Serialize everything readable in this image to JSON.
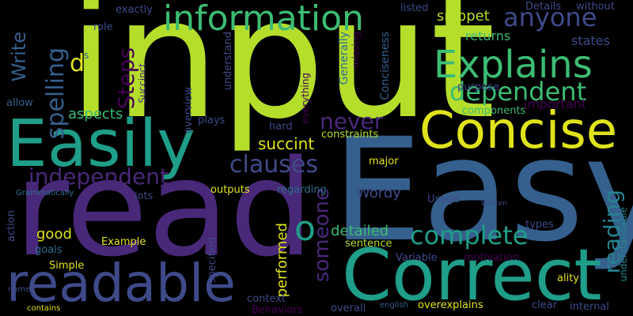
{
  "palette": {
    "lime": "#b5de2b",
    "yellow": "#e0e31a",
    "green": "#3cbc74",
    "teal": "#1f9e89",
    "blue": "#2e6f8e",
    "indigo": "#3f4a8a",
    "purple": "#482878",
    "violet": "#440154",
    "slate": "#35608d",
    "sea": "#26828e"
  },
  "words": [
    {
      "text": "input",
      "color": "lime",
      "weight": 10
    },
    {
      "text": "Easy",
      "color": "slate",
      "weight": 9
    },
    {
      "text": "read",
      "color": "purple",
      "weight": 9
    },
    {
      "text": "Correct",
      "color": "teal",
      "weight": 7
    },
    {
      "text": "Easily",
      "color": "teal",
      "weight": 7
    },
    {
      "text": "readable",
      "color": "indigo",
      "weight": 6
    },
    {
      "text": "Concise",
      "color": "yellow",
      "weight": 6
    },
    {
      "text": "information",
      "color": "green",
      "weight": 5
    },
    {
      "text": "Explains",
      "color": "green",
      "weight": 5
    },
    {
      "text": "dependent",
      "color": "green",
      "weight": 4
    },
    {
      "text": "complete",
      "color": "teal",
      "weight": 4
    },
    {
      "text": "independent",
      "color": "purple",
      "weight": 4
    },
    {
      "text": "clauses",
      "color": "indigo",
      "weight": 4
    },
    {
      "text": "anyone",
      "color": "indigo",
      "weight": 4
    },
    {
      "text": "Steps",
      "color": "violet",
      "weight": 4
    },
    {
      "text": "spelling",
      "color": "slate",
      "weight": 4
    },
    {
      "text": "Write",
      "color": "slate",
      "weight": 3
    },
    {
      "text": "never",
      "color": "purple",
      "weight": 3
    },
    {
      "text": "someone",
      "color": "purple",
      "weight": 3
    },
    {
      "text": "reading",
      "color": "sea",
      "weight": 3
    },
    {
      "text": "o",
      "color": "teal",
      "weight": 4
    },
    {
      "text": "d",
      "color": "yellow",
      "weight": 3
    },
    {
      "text": "succint",
      "color": "yellow",
      "weight": 2
    },
    {
      "text": "detailed",
      "color": "green",
      "weight": 2
    },
    {
      "text": "snippet",
      "color": "lime",
      "weight": 2
    },
    {
      "text": "returns",
      "color": "green",
      "weight": 2
    },
    {
      "text": "aspects",
      "color": "green",
      "weight": 2
    },
    {
      "text": "Wordy",
      "color": "indigo",
      "weight": 2
    },
    {
      "text": "good",
      "color": "yellow",
      "weight": 2
    },
    {
      "text": "performed",
      "color": "yellow",
      "weight": 2
    },
    {
      "text": "important",
      "color": "violet",
      "weight": 2
    },
    {
      "text": "states",
      "color": "indigo",
      "weight": 2
    },
    {
      "text": "exactly",
      "color": "indigo",
      "weight": 1
    },
    {
      "text": "role",
      "color": "indigo",
      "weight": 1
    },
    {
      "text": "s",
      "color": "slate",
      "weight": 1
    },
    {
      "text": "understand",
      "color": "indigo",
      "weight": 1
    },
    {
      "text": "Generally",
      "color": "blue",
      "weight": 1
    },
    {
      "text": "missing",
      "color": "violet",
      "weight": 1
    },
    {
      "text": "Conciseness",
      "color": "slate",
      "weight": 1
    },
    {
      "text": "listed",
      "color": "indigo",
      "weight": 1
    },
    {
      "text": "Details",
      "color": "indigo",
      "weight": 1
    },
    {
      "text": "without",
      "color": "indigo",
      "weight": 1
    },
    {
      "text": "Succinct",
      "color": "purple",
      "weight": 1
    },
    {
      "text": "purpose",
      "color": "indigo",
      "weight": 1
    },
    {
      "text": "everything",
      "color": "violet",
      "weight": 1
    },
    {
      "text": "overview",
      "color": "indigo",
      "weight": 1
    },
    {
      "text": "plays",
      "color": "indigo",
      "weight": 1
    },
    {
      "text": "hard",
      "color": "indigo",
      "weight": 1
    },
    {
      "text": "constraints",
      "color": "lime",
      "weight": 1
    },
    {
      "text": "components",
      "color": "green",
      "weight": 1
    },
    {
      "text": "allow",
      "color": "slate",
      "weight": 1
    },
    {
      "text": "major",
      "color": "yellow",
      "weight": 1
    },
    {
      "text": "Grammatically",
      "color": "blue",
      "weight": 1
    },
    {
      "text": "action",
      "color": "indigo",
      "weight": 1
    },
    {
      "text": "lots",
      "color": "indigo",
      "weight": 1
    },
    {
      "text": "outputs",
      "color": "yellow",
      "weight": 1
    },
    {
      "text": "regarding",
      "color": "blue",
      "weight": 1
    },
    {
      "text": "Usage",
      "color": "indigo",
      "weight": 1
    },
    {
      "text": "types",
      "color": "indigo",
      "weight": 1
    },
    {
      "text": "goals",
      "color": "blue",
      "weight": 1
    },
    {
      "text": "Example",
      "color": "yellow",
      "weight": 1
    },
    {
      "text": "sentence",
      "color": "lime",
      "weight": 1
    },
    {
      "text": "Simple",
      "color": "yellow",
      "weight": 1
    },
    {
      "text": "specified",
      "color": "indigo",
      "weight": 1
    },
    {
      "text": "Variable",
      "color": "indigo",
      "weight": 1
    },
    {
      "text": "motivation",
      "color": "violet",
      "weight": 1
    },
    {
      "text": "ality",
      "color": "yellow",
      "weight": 1
    },
    {
      "text": "understandable",
      "color": "sea",
      "weight": 1
    },
    {
      "text": "name",
      "color": "indigo",
      "weight": 1
    },
    {
      "text": "context",
      "color": "indigo",
      "weight": 1
    },
    {
      "text": "Behaviors",
      "color": "violet",
      "weight": 1
    },
    {
      "text": "overall",
      "color": "indigo",
      "weight": 1
    },
    {
      "text": "english",
      "color": "slate",
      "weight": 1
    },
    {
      "text": "overexplains",
      "color": "yellow",
      "weight": 1
    },
    {
      "text": "clear",
      "color": "indigo",
      "weight": 1
    },
    {
      "text": "internal",
      "color": "indigo",
      "weight": 1
    },
    {
      "text": "contains",
      "color": "yellow",
      "weight": 1
    },
    {
      "text": "Written",
      "color": "indigo",
      "weight": 1
    }
  ]
}
